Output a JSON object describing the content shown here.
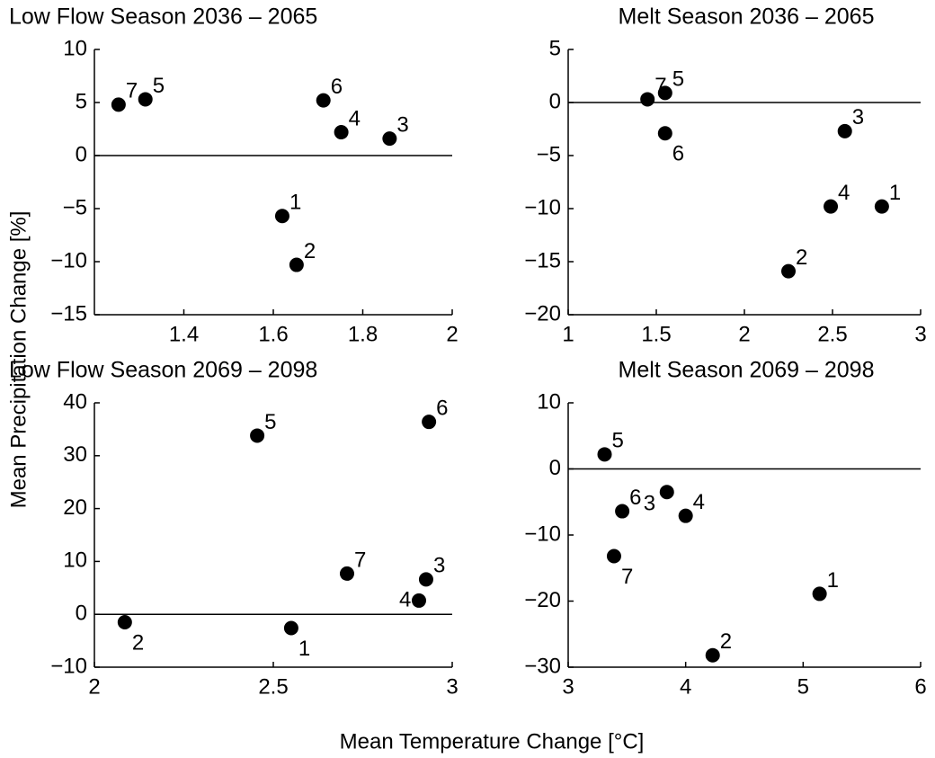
{
  "axis_labels": {
    "x": "Mean Temperature Change [°C]",
    "y": "Mean Precipitation Change [%]"
  },
  "chart_data": [
    {
      "type": "scatter",
      "title": "Low Flow Season 2036 – 2065",
      "color": "#000000",
      "reference_line": 0,
      "point_labels": [
        "7",
        "5",
        "6",
        "4",
        "3",
        "1",
        "2"
      ],
      "x": [
        1.254,
        1.314,
        1.712,
        1.752,
        1.86,
        1.62,
        1.652
      ],
      "y": [
        4.8,
        5.3,
        5.2,
        2.2,
        1.6,
        -5.7,
        -10.3
      ],
      "xlim": [
        1.2,
        2
      ],
      "ylim": [
        -15,
        10
      ],
      "xticks": [
        1.4,
        1.6,
        1.8,
        2
      ],
      "yticks": [
        {
          "value": -15,
          "label": "−15"
        },
        {
          "value": -10,
          "label": "−10"
        },
        {
          "value": -5,
          "label": "−5"
        },
        0,
        5,
        10
      ]
    },
    {
      "type": "scatter",
      "title": "Melt Season 2036 – 2065",
      "color": "#000000",
      "reference_line": 0,
      "point_labels": [
        "7",
        "5",
        "6",
        "3",
        "4",
        "1",
        "2"
      ],
      "x": [
        1.45,
        1.55,
        1.55,
        2.57,
        2.49,
        2.78,
        2.25
      ],
      "y": [
        0.3,
        0.9,
        -2.9,
        -2.7,
        -9.8,
        -9.8,
        -15.9
      ],
      "xlim": [
        1,
        3
      ],
      "ylim": [
        -20,
        5
      ],
      "xticks": [
        1,
        1.5,
        2,
        2.5,
        3
      ],
      "yticks": [
        {
          "value": -20,
          "label": "−20"
        },
        {
          "value": -15,
          "label": "−15"
        },
        {
          "value": -10,
          "label": "−10"
        },
        {
          "value": -5,
          "label": "−5"
        },
        0,
        5
      ]
    },
    {
      "type": "scatter",
      "title": "Low Flow Season 2069 – 2098",
      "color": "#000000",
      "reference_line": 0,
      "point_labels": [
        "5",
        "6",
        "7",
        "3",
        "4",
        "2",
        "1"
      ],
      "x": [
        2.455,
        2.935,
        2.706,
        2.927,
        2.907,
        2.085,
        2.55
      ],
      "y": [
        33.8,
        36.4,
        7.7,
        6.6,
        2.6,
        -1.5,
        -2.6
      ],
      "xlim": [
        2,
        3
      ],
      "ylim": [
        -10,
        40
      ],
      "xticks": [
        2,
        2.5,
        3
      ],
      "yticks": [
        {
          "value": -10,
          "label": "−10"
        },
        0,
        10,
        20,
        30,
        40
      ]
    },
    {
      "type": "scatter",
      "title": "Melt Season 2069 – 2098",
      "color": "#000000",
      "reference_line": 0,
      "point_labels": [
        "5",
        "6",
        "3",
        "4",
        "7",
        "1",
        "2"
      ],
      "x": [
        3.31,
        3.46,
        3.84,
        4.0,
        3.39,
        5.14,
        4.23
      ],
      "y": [
        2.2,
        -6.4,
        -3.5,
        -7.1,
        -13.2,
        -18.9,
        -28.2
      ],
      "xlim": [
        3,
        6
      ],
      "ylim": [
        -30,
        10
      ],
      "xticks": [
        3,
        4,
        5,
        6
      ],
      "yticks": [
        {
          "value": -30,
          "label": "−30"
        },
        {
          "value": -20,
          "label": "−20"
        },
        {
          "value": -10,
          "label": "−10"
        },
        0,
        10
      ]
    }
  ]
}
